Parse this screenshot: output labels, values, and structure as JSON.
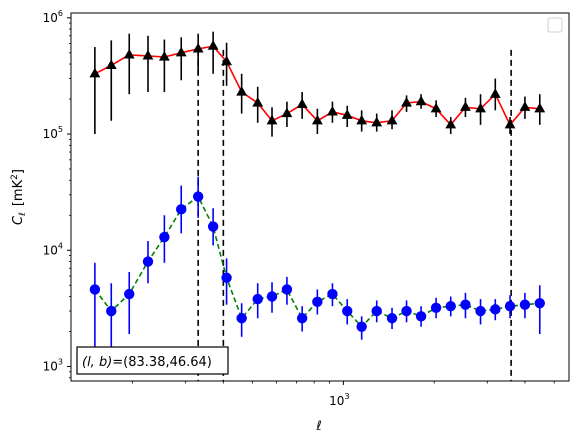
{
  "chart_data": {
    "type": "scatter",
    "xscale": "log",
    "yscale": "log",
    "xlabel": "ℓ",
    "ylabel_main": "C",
    "ylabel_sub": "ℓ",
    "ylabel_unit": "[mK",
    "ylabel_unit_sup": "2",
    "ylabel_unit_close": "]",
    "xlim": [
      125,
      5600
    ],
    "ylim": [
      750,
      1100000
    ],
    "x_ticks": [
      {
        "value": 1000,
        "label": "10",
        "sup": "3"
      }
    ],
    "y_ticks": [
      {
        "value": 1000,
        "label": "10",
        "sup": "3"
      },
      {
        "value": 10000,
        "label": "10",
        "sup": "4"
      },
      {
        "value": 100000,
        "label": "10",
        "sup": "5"
      },
      {
        "value": 1000000,
        "label": "10",
        "sup": "6"
      }
    ],
    "legend": "top-right",
    "annotation": {
      "label": "(l, b)",
      "value": "=(83.38,46.64)",
      "position": "bottom-left"
    },
    "vlines": [
      {
        "x": 330,
        "ymin": 750,
        "ymax": 530000
      },
      {
        "x": 400,
        "ymin": 750,
        "ymax": 530000
      },
      {
        "x": 3600,
        "ymin": 750,
        "ymax": 530000
      }
    ],
    "series": [
      {
        "marker": "triangle",
        "marker_color": "#000000",
        "line_color": "#ff0000",
        "line_style": "solid",
        "x": [
          150,
          170,
          195,
          225,
          255,
          290,
          330,
          370,
          410,
          460,
          520,
          580,
          650,
          730,
          820,
          920,
          1030,
          1150,
          1290,
          1450,
          1620,
          1810,
          2030,
          2270,
          2540,
          2850,
          3190,
          3570,
          4000,
          4480
        ],
        "y": [
          330000,
          390000,
          480000,
          470000,
          460000,
          500000,
          540000,
          570000,
          420000,
          230000,
          185000,
          130000,
          150000,
          180000,
          130000,
          155000,
          145000,
          130000,
          125000,
          130000,
          185000,
          190000,
          165000,
          120000,
          170000,
          165000,
          220000,
          120000,
          170000,
          165000
        ],
        "err_low": [
          100000,
          130000,
          220000,
          230000,
          230000,
          290000,
          320000,
          330000,
          260000,
          150000,
          125000,
          95000,
          115000,
          135000,
          100000,
          125000,
          115000,
          105000,
          105000,
          110000,
          155000,
          165000,
          140000,
          100000,
          140000,
          120000,
          160000,
          100000,
          135000,
          120000
        ],
        "err_high": [
          560000,
          640000,
          730000,
          700000,
          650000,
          680000,
          730000,
          760000,
          610000,
          330000,
          255000,
          170000,
          190000,
          230000,
          165000,
          190000,
          175000,
          160000,
          150000,
          160000,
          215000,
          220000,
          195000,
          140000,
          205000,
          220000,
          300000,
          140000,
          210000,
          220000
        ]
      },
      {
        "marker": "circle",
        "marker_color": "#0000ff",
        "line_color": "#008000",
        "line_style": "dashed",
        "x": [
          150,
          170,
          195,
          225,
          255,
          290,
          330,
          370,
          410,
          460,
          520,
          580,
          650,
          730,
          820,
          920,
          1030,
          1150,
          1290,
          1450,
          1620,
          1810,
          2030,
          2270,
          2540,
          2850,
          3190,
          3570,
          4000,
          4480
        ],
        "y": [
          4600,
          3000,
          4200,
          8000,
          13000,
          22500,
          29000,
          16000,
          5800,
          2600,
          3800,
          4000,
          4600,
          2600,
          3600,
          4200,
          3000,
          2200,
          3000,
          2600,
          3000,
          2700,
          3200,
          3300,
          3400,
          3000,
          3100,
          3300,
          3400,
          3500
        ],
        "err_low": [
          1100,
          1400,
          1900,
          5200,
          7800,
          14000,
          19000,
          11000,
          3400,
          1800,
          2600,
          2900,
          3400,
          2000,
          2800,
          3300,
          2300,
          1700,
          2400,
          2100,
          2400,
          2200,
          2600,
          2700,
          2600,
          2300,
          2500,
          2600,
          2600,
          1900
        ],
        "err_high": [
          7800,
          5200,
          6500,
          12000,
          20000,
          36000,
          43000,
          23000,
          8500,
          3500,
          5200,
          5300,
          5900,
          3300,
          4600,
          5200,
          3800,
          2700,
          3700,
          3200,
          3700,
          3300,
          3900,
          4000,
          4300,
          3800,
          3800,
          4100,
          4300,
          5000
        ]
      }
    ]
  }
}
